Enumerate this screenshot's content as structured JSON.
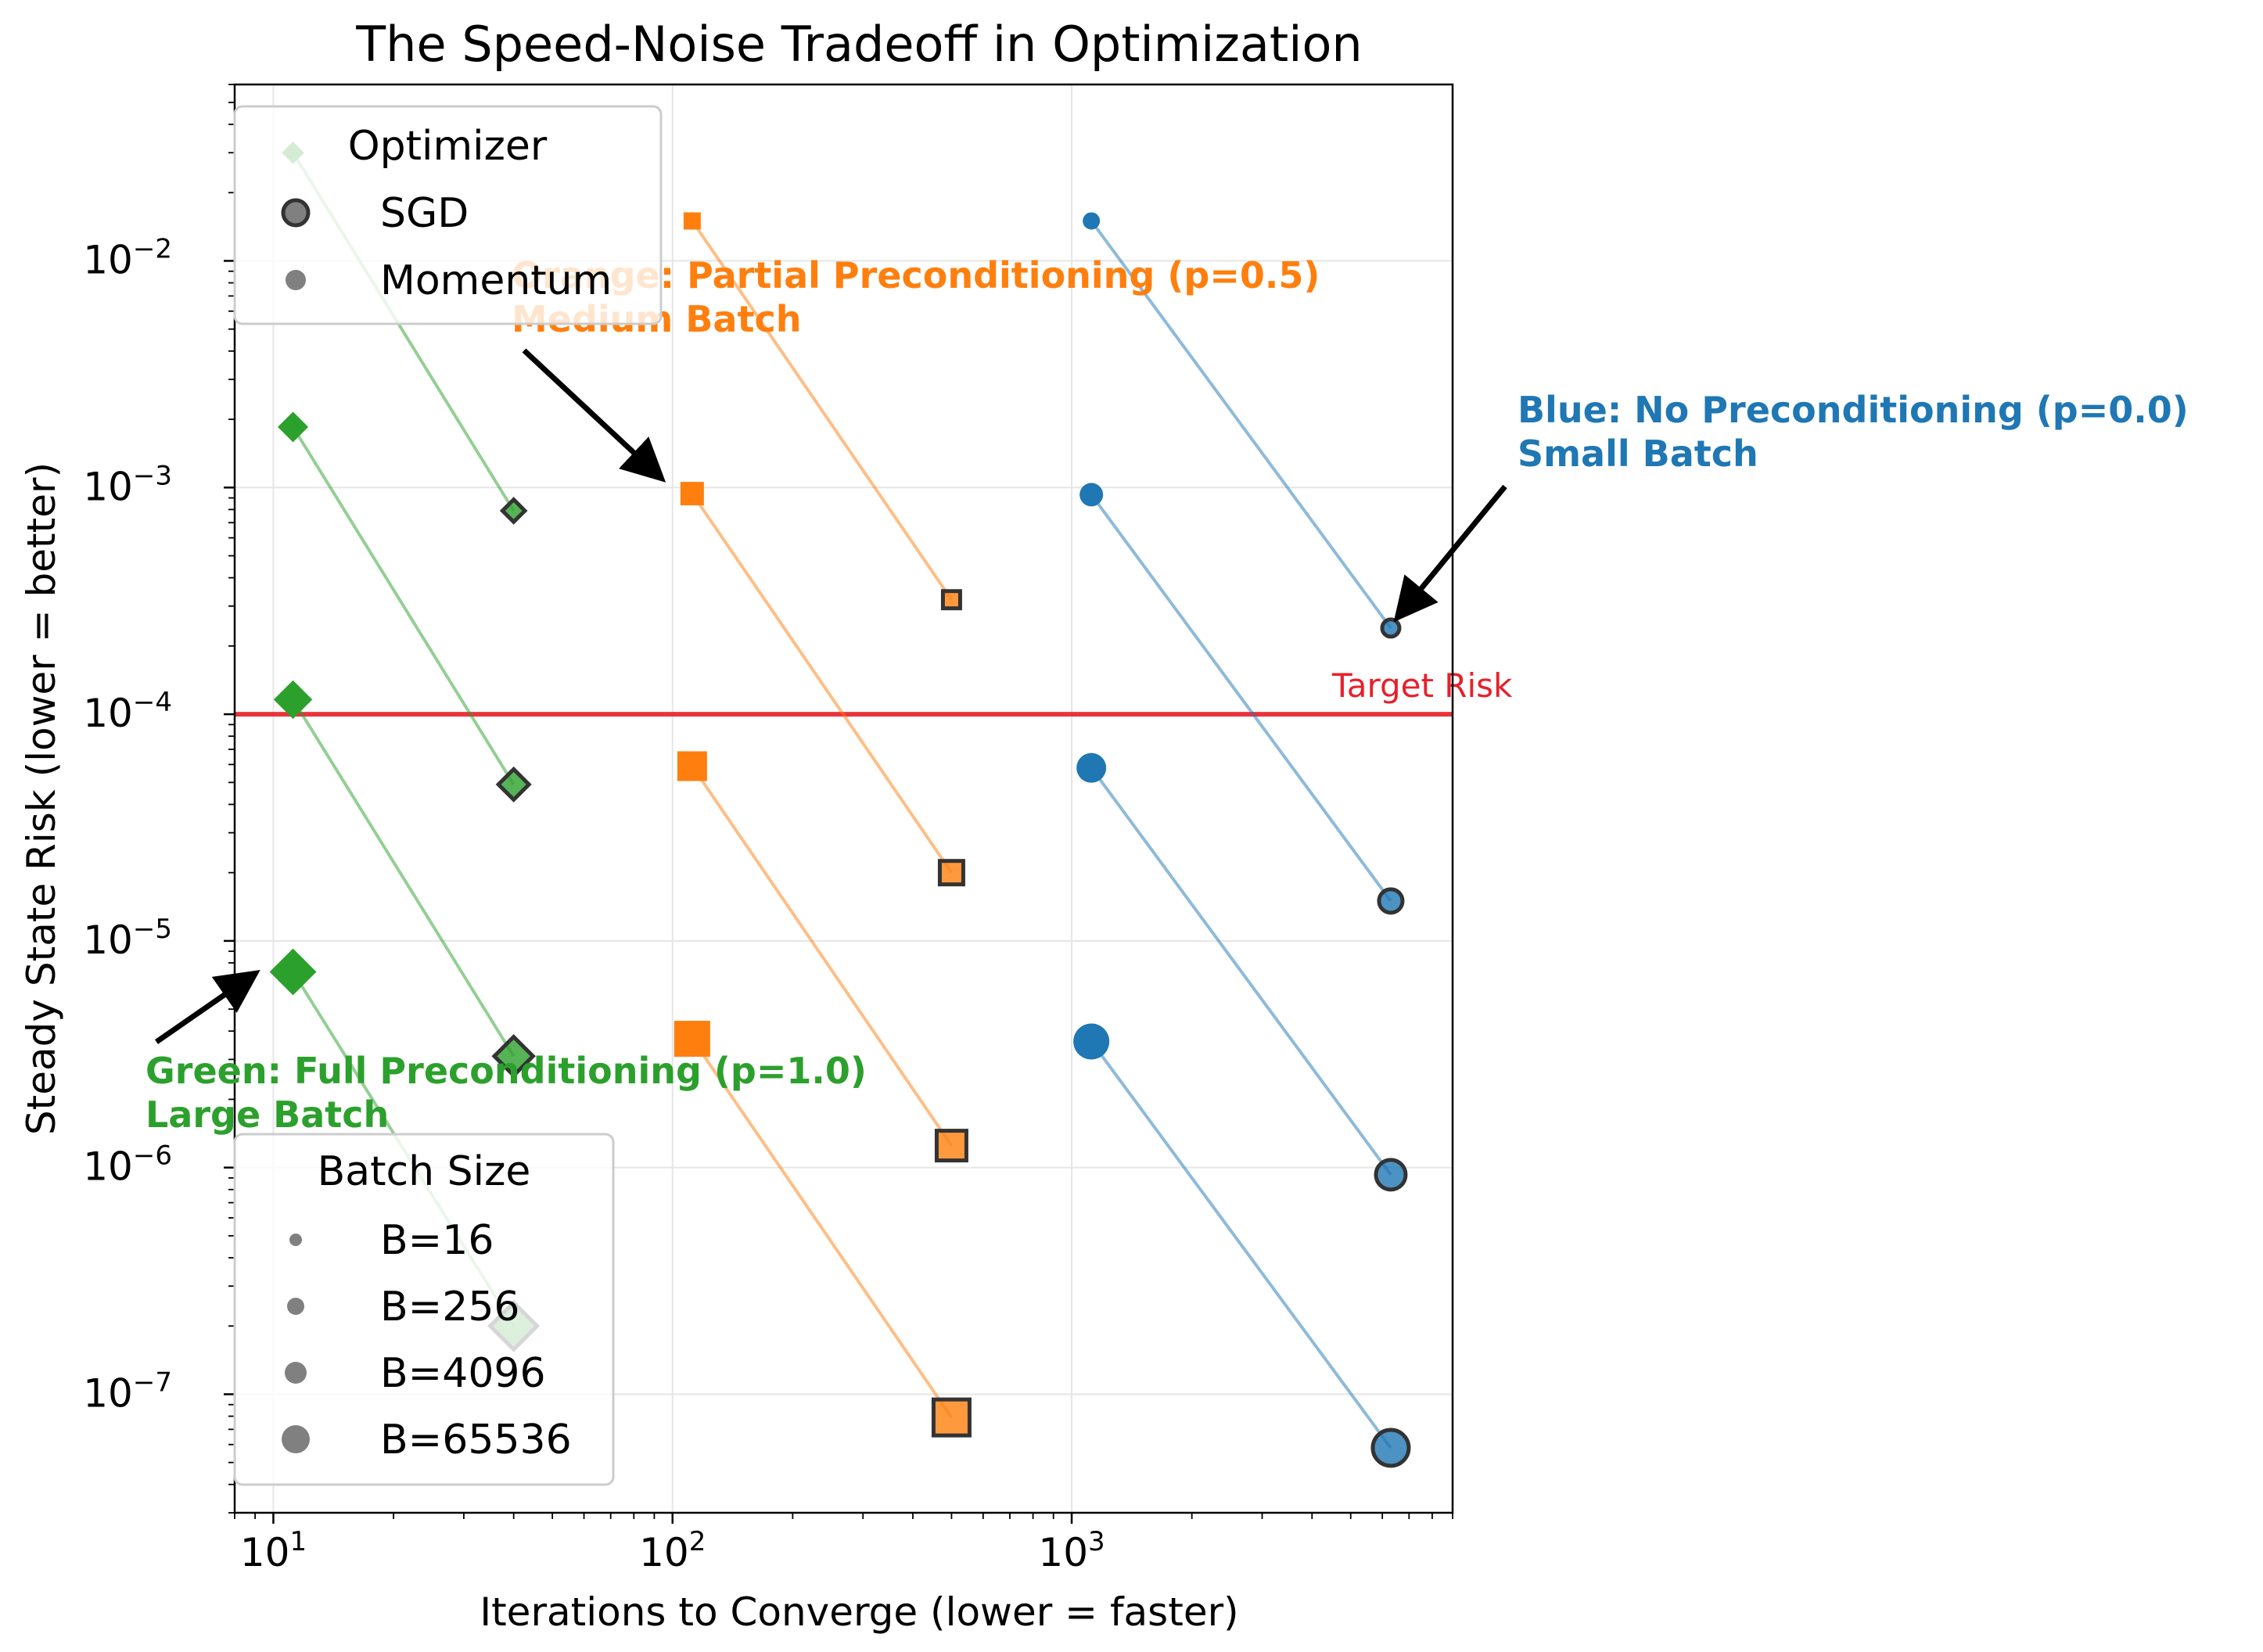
{
  "chart_data": {
    "type": "scatter",
    "title": "The Speed-Noise Tradeoff in Optimization",
    "xlabel": "Iterations to Converge (lower = faster)",
    "ylabel": "Steady State Risk (lower = better)",
    "xscale": "log",
    "yscale": "log",
    "xlim": [
      8,
      9000
    ],
    "ylim": [
      3e-08,
      0.06
    ],
    "grid": true,
    "x_ticks": [
      {
        "value": 10,
        "base": "10",
        "exp": "1"
      },
      {
        "value": 100,
        "base": "10",
        "exp": "2"
      },
      {
        "value": 1000,
        "base": "10",
        "exp": "3"
      }
    ],
    "y_ticks": [
      {
        "value": 1e-07,
        "base": "10",
        "exp": "−7"
      },
      {
        "value": 1e-06,
        "base": "10",
        "exp": "−6"
      },
      {
        "value": 1e-05,
        "base": "10",
        "exp": "−5"
      },
      {
        "value": 0.0001,
        "base": "10",
        "exp": "−4"
      },
      {
        "value": 0.001,
        "base": "10",
        "exp": "−3"
      },
      {
        "value": 0.01,
        "base": "10",
        "exp": "−2"
      }
    ],
    "reference_line": {
      "y": 0.0001,
      "label": "Target Risk",
      "color": "#e8202a"
    },
    "groups": [
      {
        "color": "#2ca02c",
        "marker": "diamond",
        "momentum_x": 11.2,
        "sgd_x": 40,
        "pairs": [
          {
            "batch": 16,
            "momentum_y": 0.03,
            "sgd_y": 0.00079
          },
          {
            "batch": 256,
            "momentum_y": 0.00185,
            "sgd_y": 4.9e-05
          },
          {
            "batch": 4096,
            "momentum_y": 0.000116,
            "sgd_y": 3.1e-06
          },
          {
            "batch": 65536,
            "momentum_y": 7.3e-06,
            "sgd_y": 2e-07
          }
        ]
      },
      {
        "color": "#ff7f0e",
        "marker": "square",
        "momentum_x": 112,
        "sgd_x": 500,
        "pairs": [
          {
            "batch": 16,
            "momentum_y": 0.015,
            "sgd_y": 0.00032
          },
          {
            "batch": 256,
            "momentum_y": 0.00094,
            "sgd_y": 2e-05
          },
          {
            "batch": 4096,
            "momentum_y": 5.9e-05,
            "sgd_y": 1.25e-06
          },
          {
            "batch": 65536,
            "momentum_y": 3.7e-06,
            "sgd_y": 7.9e-08
          }
        ]
      },
      {
        "color": "#1f77b4",
        "marker": "circle",
        "momentum_x": 1120,
        "sgd_x": 6300,
        "pairs": [
          {
            "batch": 16,
            "momentum_y": 0.015,
            "sgd_y": 0.00024
          },
          {
            "batch": 256,
            "momentum_y": 0.00093,
            "sgd_y": 1.5e-05
          },
          {
            "batch": 4096,
            "momentum_y": 5.8e-05,
            "sgd_y": 9.3e-07
          },
          {
            "batch": 65536,
            "momentum_y": 3.6e-06,
            "sgd_y": 5.8e-08
          }
        ]
      }
    ],
    "annotations": [
      {
        "lines": [
          "Blue: No Preconditioning (p=0.0)",
          "Small Batch"
        ],
        "color": "#1f77b4",
        "arrow_to": {
          "x": 6300,
          "y": 0.00024
        }
      },
      {
        "lines": [
          "Orange: Partial Preconditioning (p=0.5)",
          "Medium Batch"
        ],
        "color": "#ff7f0e",
        "arrow_to": {
          "x": 112,
          "y": 0.00094
        }
      },
      {
        "lines": [
          "Green: Full Preconditioning (p=1.0)",
          "Large Batch"
        ],
        "color": "#2ca02c",
        "arrow_to": {
          "x": 11.2,
          "y": 7.3e-06
        }
      }
    ],
    "legend_optimizer": {
      "title": "Optimizer",
      "placement": "upper-left",
      "entries": [
        {
          "label": "SGD",
          "style": "outlined"
        },
        {
          "label": "Momentum",
          "style": "plain"
        }
      ]
    },
    "legend_batch": {
      "title": "Batch Size",
      "placement": "lower-left",
      "entries": [
        {
          "label": "B=16",
          "batch": 16
        },
        {
          "label": "B=256",
          "batch": 256
        },
        {
          "label": "B=4096",
          "batch": 4096
        },
        {
          "label": "B=65536",
          "batch": 65536
        }
      ]
    }
  }
}
